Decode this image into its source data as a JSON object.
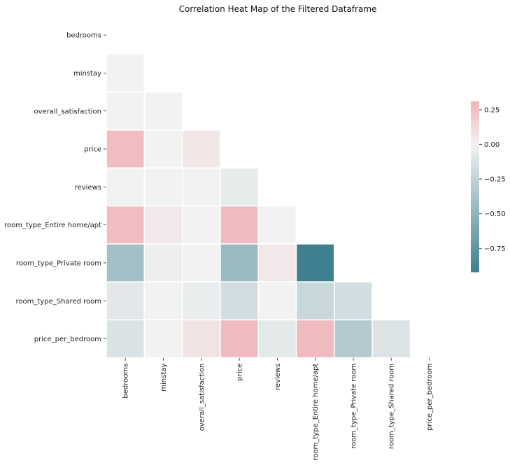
{
  "chart_data": {
    "type": "heatmap",
    "title": "Correlation Heat Map of the Filtered Dataframe",
    "variables": [
      "bedrooms",
      "minstay",
      "overall_satisfaction",
      "price",
      "reviews",
      "room_type_Entire home/apt",
      "room_type_Private room",
      "room_type_Shared room",
      "price_per_bedroom"
    ],
    "mask": "upper-triangle-including-diagonal",
    "values": [
      [
        null,
        null,
        null,
        null,
        null,
        null,
        null,
        null,
        null
      ],
      [
        0.0,
        null,
        null,
        null,
        null,
        null,
        null,
        null,
        null
      ],
      [
        0.0,
        0.0,
        null,
        null,
        null,
        null,
        null,
        null,
        null
      ],
      [
        0.27,
        0.0,
        0.06,
        null,
        null,
        null,
        null,
        null,
        null
      ],
      [
        0.0,
        0.0,
        0.0,
        -0.06,
        null,
        null,
        null,
        null,
        null
      ],
      [
        0.27,
        0.05,
        0.0,
        0.28,
        0.0,
        null,
        null,
        null,
        null
      ],
      [
        -0.4,
        -0.03,
        0.0,
        -0.45,
        0.05,
        -0.92,
        null,
        null,
        null
      ],
      [
        -0.08,
        0.0,
        -0.04,
        -0.17,
        0.0,
        -0.22,
        -0.17,
        null,
        null
      ],
      [
        -0.13,
        0.0,
        0.08,
        0.28,
        -0.07,
        0.28,
        -0.32,
        -0.12,
        null
      ]
    ],
    "colorbar": {
      "min": -0.92,
      "max": 0.31,
      "ticks": [
        0.25,
        0.0,
        -0.25,
        -0.5,
        -0.75
      ],
      "tick_labels": [
        "0.25",
        "0.00",
        "−0.25",
        "−0.50",
        "−0.75"
      ]
    },
    "palette": {
      "negative": "#3f7f8f",
      "center": "#f2f2f2",
      "positive": "#f0b5b9"
    }
  }
}
